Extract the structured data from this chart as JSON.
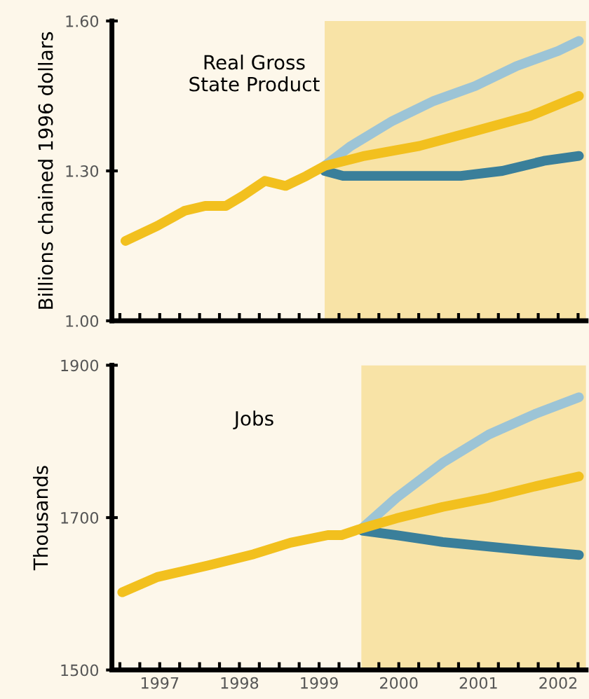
{
  "chart_data": [
    {
      "type": "line",
      "ylabel": "Billions chained 1996 dollars",
      "annotations": [
        "Real Gross\nState Product"
      ],
      "tick_labels": "y",
      "xlim": [
        1996.4,
        2002.35
      ],
      "ylim": [
        1.0,
        1.6
      ],
      "yticks": [
        {
          "value": 1.0,
          "label": "1.00"
        },
        {
          "value": 1.3,
          "label": "1.30"
        },
        {
          "value": 1.6,
          "label": "1.60"
        }
      ],
      "xticks": [
        {
          "value": 1996.5,
          "label": null
        },
        {
          "value": 1996.75,
          "label": null
        },
        {
          "value": 1997,
          "label": null
        },
        {
          "value": 1997.25,
          "label": null
        },
        {
          "value": 1997.5,
          "label": null
        },
        {
          "value": 1997.75,
          "label": null
        },
        {
          "value": 1998,
          "label": null
        },
        {
          "value": 1998.25,
          "label": null
        },
        {
          "value": 1998.5,
          "label": null
        },
        {
          "value": 1998.75,
          "label": null
        },
        {
          "value": 1999,
          "label": null
        },
        {
          "value": 1999.25,
          "label": null
        },
        {
          "value": 1999.5,
          "label": null
        },
        {
          "value": 1999.75,
          "label": null
        },
        {
          "value": 2000,
          "label": null
        },
        {
          "value": 2000.25,
          "label": null
        },
        {
          "value": 2000.5,
          "label": null
        },
        {
          "value": 2000.75,
          "label": null
        },
        {
          "value": 2001,
          "label": null
        },
        {
          "value": 2001.25,
          "label": null
        },
        {
          "value": 2001.5,
          "label": null
        },
        {
          "value": 2001.75,
          "label": null
        },
        {
          "value": 2002,
          "label": null
        },
        {
          "value": 2002.25,
          "label": null
        }
      ],
      "bands": [
        {
          "axis": "x",
          "from": 1999.07,
          "to": 2002.35,
          "color": "#f8e3a6"
        }
      ],
      "series": [
        {
          "color": "#9cc4d6",
          "x": [
            1999.07,
            1999.4,
            1999.92,
            2000.44,
            2000.96,
            2001.48,
            2002.0,
            2002.26
          ],
          "values": [
            1.31,
            1.35,
            1.4,
            1.44,
            1.47,
            1.51,
            1.54,
            1.56
          ]
        },
        {
          "color": "#3a7f9a",
          "x": [
            1999.07,
            1999.3,
            1999.74,
            2000.26,
            2000.78,
            2001.3,
            2001.82,
            2002.26
          ],
          "values": [
            1.3,
            1.29,
            1.29,
            1.29,
            1.29,
            1.3,
            1.32,
            1.33
          ]
        },
        {
          "color": "#f2c01e",
          "x": [
            1996.57,
            1996.97,
            1997.31,
            1997.57,
            1997.83,
            1998.04,
            1998.32,
            1998.58,
            1998.84,
            1999.07,
            1999.57,
            2000.26,
            2000.96,
            2001.65,
            2002.26
          ],
          "values": [
            1.16,
            1.19,
            1.22,
            1.23,
            1.23,
            1.25,
            1.28,
            1.27,
            1.29,
            1.31,
            1.33,
            1.35,
            1.38,
            1.41,
            1.45
          ]
        }
      ]
    },
    {
      "type": "line",
      "ylabel": "Thousands",
      "annotations": [
        "Jobs"
      ],
      "xlim": [
        1996.4,
        2002.35
      ],
      "ylim": [
        1500,
        1900
      ],
      "yticks": [
        1500,
        1700,
        1900
      ],
      "xticks": [
        {
          "value": 1996.5,
          "label": null
        },
        {
          "value": 1996.75,
          "label": null
        },
        {
          "value": 1997,
          "label": "1997"
        },
        {
          "value": 1997.25,
          "label": null
        },
        {
          "value": 1997.5,
          "label": null
        },
        {
          "value": 1997.75,
          "label": null
        },
        {
          "value": 1998,
          "label": "1998"
        },
        {
          "value": 1998.25,
          "label": null
        },
        {
          "value": 1998.5,
          "label": null
        },
        {
          "value": 1998.75,
          "label": null
        },
        {
          "value": 1999,
          "label": "1999"
        },
        {
          "value": 1999.25,
          "label": null
        },
        {
          "value": 1999.5,
          "label": null
        },
        {
          "value": 1999.75,
          "label": null
        },
        {
          "value": 2000,
          "label": "2000"
        },
        {
          "value": 2000.25,
          "label": null
        },
        {
          "value": 2000.5,
          "label": null
        },
        {
          "value": 2000.75,
          "label": null
        },
        {
          "value": 2001,
          "label": "2001"
        },
        {
          "value": 2001.25,
          "label": null
        },
        {
          "value": 2001.5,
          "label": null
        },
        {
          "value": 2001.75,
          "label": null
        },
        {
          "value": 2002,
          "label": "2002"
        },
        {
          "value": 2002.25,
          "label": null
        }
      ],
      "bands": [
        {
          "axis": "x",
          "from": 1999.53,
          "to": 2002.35,
          "color": "#f8e3a6"
        }
      ],
      "series": [
        {
          "color": "#9cc4d6",
          "x": [
            1999.54,
            1999.97,
            2000.55,
            2001.13,
            2001.71,
            2002.26
          ],
          "values": [
            1686,
            1726,
            1772,
            1809,
            1836,
            1858
          ]
        },
        {
          "color": "#3a7f9a",
          "x": [
            1999.54,
            1999.97,
            2000.55,
            2001.13,
            2001.71,
            2002.26
          ],
          "values": [
            1683,
            1677,
            1668,
            1662,
            1656,
            1651
          ]
        },
        {
          "color": "#f2c01e",
          "x": [
            1996.53,
            1996.97,
            1997.6,
            1998.18,
            1998.64,
            1999.11,
            1999.28,
            1999.54,
            1999.97,
            2000.55,
            2001.13,
            2001.71,
            2002.26
          ],
          "values": [
            1602,
            1622,
            1637,
            1652,
            1667,
            1677,
            1677,
            1686,
            1699,
            1714,
            1726,
            1741,
            1754
          ]
        }
      ]
    }
  ]
}
